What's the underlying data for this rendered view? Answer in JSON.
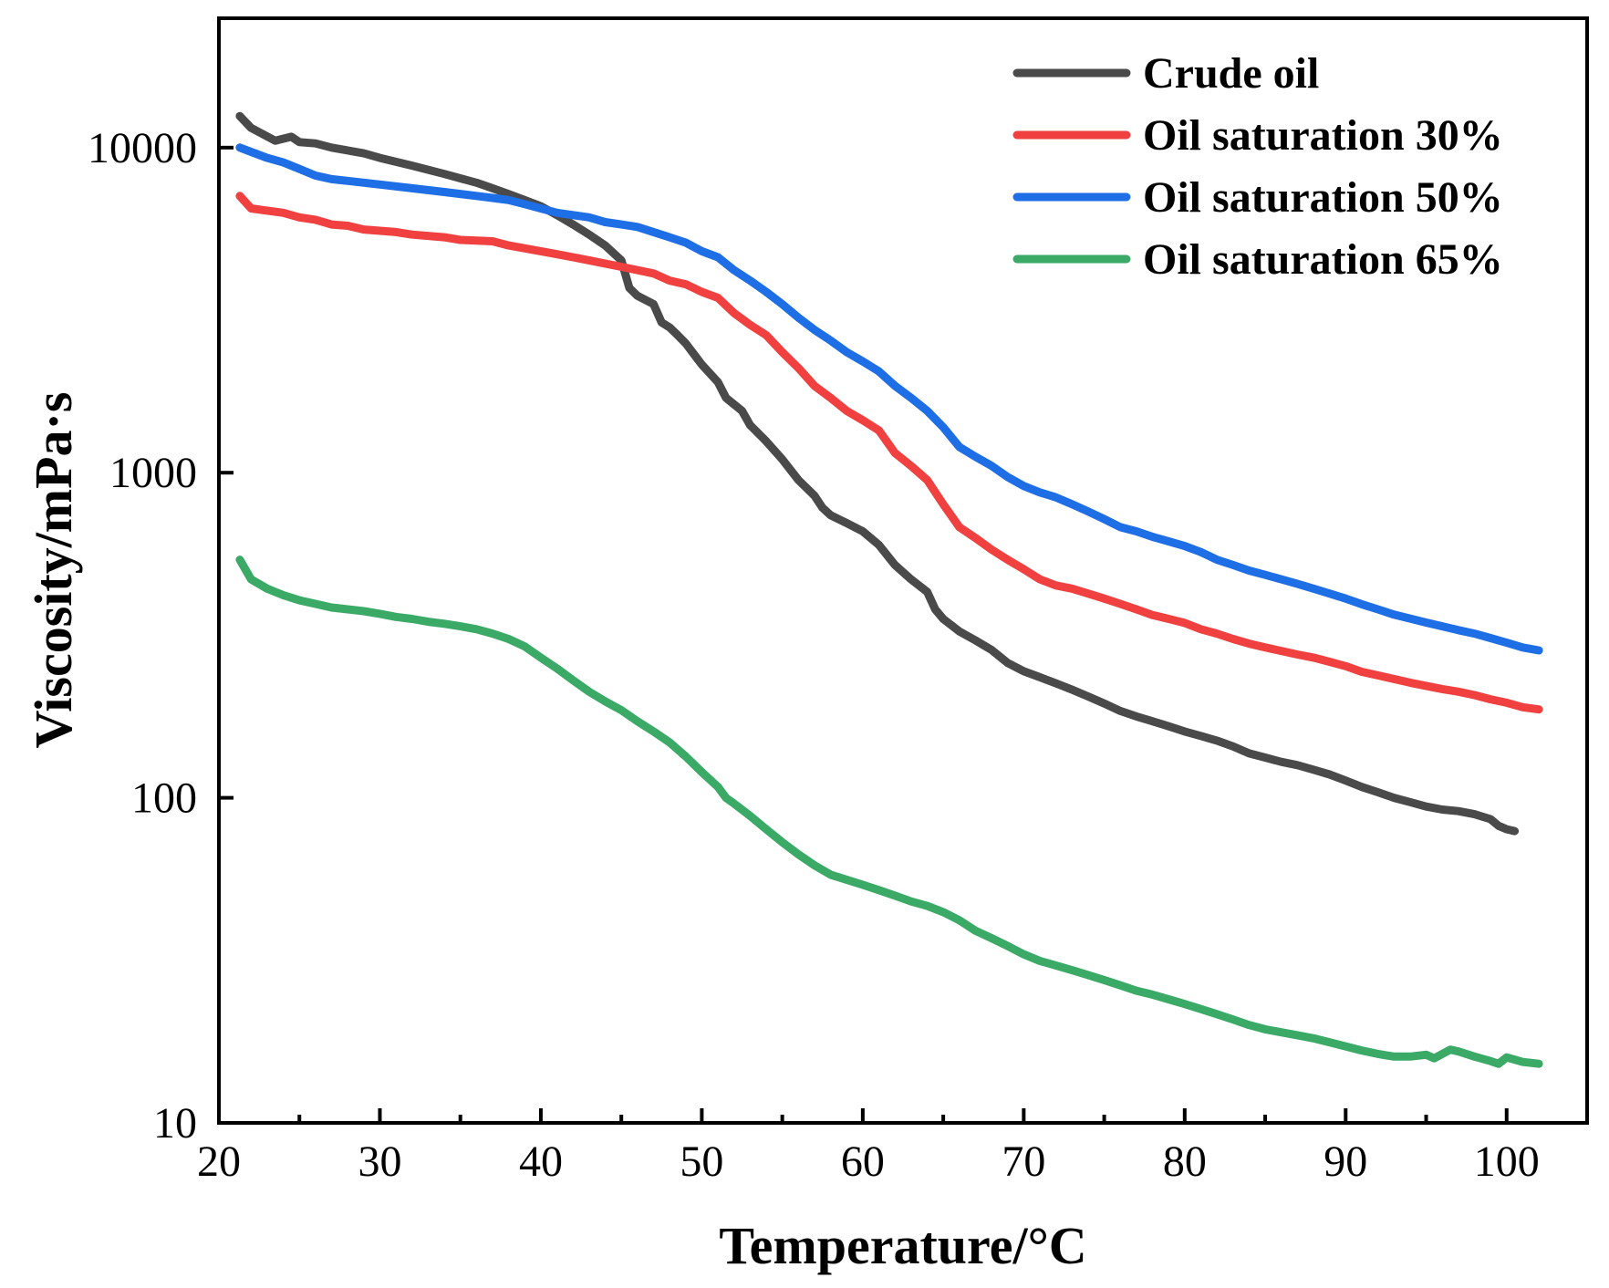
{
  "chart_data": {
    "type": "line",
    "xlabel": "Temperature/°C",
    "ylabel": "Viscosity/mPa·s",
    "xlim": [
      20,
      105
    ],
    "ylim": [
      10,
      25000
    ],
    "y_scale": "log",
    "x_ticks": [
      20,
      30,
      40,
      50,
      60,
      70,
      80,
      90,
      100
    ],
    "y_ticks": [
      10,
      100,
      1000,
      10000
    ],
    "x_tick_labels": [
      "20",
      "30",
      "40",
      "50",
      "60",
      "70",
      "80",
      "90",
      "100"
    ],
    "y_tick_labels": [
      "10",
      "100",
      "1000",
      "10000"
    ],
    "legend_position": "top-right",
    "grid": false,
    "series": [
      {
        "name": "Crude oil",
        "color": "#4a4a4a",
        "points": [
          [
            21.3,
            12500
          ],
          [
            22,
            11500
          ],
          [
            23.5,
            10500
          ],
          [
            24.5,
            10800
          ],
          [
            25,
            10400
          ],
          [
            26,
            10300
          ],
          [
            27,
            10000
          ],
          [
            29,
            9600
          ],
          [
            30,
            9300
          ],
          [
            32,
            8800
          ],
          [
            34,
            8300
          ],
          [
            36,
            7800
          ],
          [
            37,
            7500
          ],
          [
            38,
            7200
          ],
          [
            39,
            6900
          ],
          [
            40,
            6600
          ],
          [
            41,
            6200
          ],
          [
            42,
            5800
          ],
          [
            43,
            5400
          ],
          [
            44,
            5000
          ],
          [
            45,
            4500
          ],
          [
            45.5,
            3700
          ],
          [
            46,
            3500
          ],
          [
            47,
            3300
          ],
          [
            47.5,
            2900
          ],
          [
            48,
            2800
          ],
          [
            48.5,
            2650
          ],
          [
            49,
            2500
          ],
          [
            50,
            2150
          ],
          [
            51,
            1900
          ],
          [
            51.5,
            1700
          ],
          [
            52.5,
            1550
          ],
          [
            53,
            1400
          ],
          [
            54,
            1250
          ],
          [
            55,
            1100
          ],
          [
            56,
            950
          ],
          [
            57,
            850
          ],
          [
            57.5,
            780
          ],
          [
            58,
            740
          ],
          [
            59,
            700
          ],
          [
            60,
            660
          ],
          [
            61,
            600
          ],
          [
            62,
            520
          ],
          [
            63,
            470
          ],
          [
            64,
            430
          ],
          [
            64.5,
            380
          ],
          [
            65,
            355
          ],
          [
            66,
            325
          ],
          [
            67,
            305
          ],
          [
            68,
            285
          ],
          [
            69,
            260
          ],
          [
            70,
            245
          ],
          [
            71,
            235
          ],
          [
            72,
            225
          ],
          [
            73,
            215
          ],
          [
            74,
            205
          ],
          [
            75,
            195
          ],
          [
            76,
            185
          ],
          [
            77,
            178
          ],
          [
            78,
            172
          ],
          [
            79,
            166
          ],
          [
            80,
            160
          ],
          [
            81,
            155
          ],
          [
            82,
            150
          ],
          [
            83,
            144
          ],
          [
            84,
            137
          ],
          [
            85,
            133
          ],
          [
            86,
            129
          ],
          [
            87,
            126
          ],
          [
            88,
            122
          ],
          [
            89,
            118
          ],
          [
            90,
            113
          ],
          [
            91,
            108
          ],
          [
            92,
            104
          ],
          [
            93,
            100
          ],
          [
            94,
            97
          ],
          [
            95,
            94
          ],
          [
            96,
            92
          ],
          [
            97,
            91
          ],
          [
            98,
            89
          ],
          [
            99,
            86
          ],
          [
            99.5,
            82
          ],
          [
            100,
            80
          ],
          [
            100.5,
            79
          ]
        ]
      },
      {
        "name": "Oil saturation 30%",
        "color": "#f04040",
        "points": [
          [
            21.3,
            7100
          ],
          [
            22,
            6500
          ],
          [
            23,
            6400
          ],
          [
            24,
            6300
          ],
          [
            25,
            6100
          ],
          [
            26,
            6000
          ],
          [
            27,
            5800
          ],
          [
            28,
            5750
          ],
          [
            29,
            5600
          ],
          [
            31,
            5500
          ],
          [
            32,
            5400
          ],
          [
            34,
            5300
          ],
          [
            35,
            5200
          ],
          [
            37,
            5150
          ],
          [
            38,
            5000
          ],
          [
            40,
            4800
          ],
          [
            41,
            4700
          ],
          [
            42,
            4600
          ],
          [
            43,
            4500
          ],
          [
            45,
            4300
          ],
          [
            46,
            4200
          ],
          [
            47,
            4100
          ],
          [
            48,
            3900
          ],
          [
            49,
            3800
          ],
          [
            50,
            3600
          ],
          [
            51,
            3450
          ],
          [
            52,
            3100
          ],
          [
            53,
            2850
          ],
          [
            54,
            2650
          ],
          [
            55,
            2350
          ],
          [
            56,
            2100
          ],
          [
            57,
            1850
          ],
          [
            58,
            1700
          ],
          [
            59,
            1550
          ],
          [
            60,
            1450
          ],
          [
            61,
            1350
          ],
          [
            62,
            1150
          ],
          [
            63,
            1050
          ],
          [
            64,
            950
          ],
          [
            65,
            800
          ],
          [
            66,
            680
          ],
          [
            67,
            630
          ],
          [
            68,
            580
          ],
          [
            69,
            540
          ],
          [
            70,
            505
          ],
          [
            71,
            470
          ],
          [
            72,
            450
          ],
          [
            73,
            440
          ],
          [
            74,
            425
          ],
          [
            75,
            410
          ],
          [
            76,
            395
          ],
          [
            77,
            380
          ],
          [
            78,
            365
          ],
          [
            79,
            355
          ],
          [
            80,
            345
          ],
          [
            81,
            330
          ],
          [
            82,
            320
          ],
          [
            83,
            308
          ],
          [
            84,
            298
          ],
          [
            85,
            290
          ],
          [
            86,
            283
          ],
          [
            87,
            276
          ],
          [
            88,
            270
          ],
          [
            89,
            262
          ],
          [
            90,
            254
          ],
          [
            91,
            244
          ],
          [
            92,
            238
          ],
          [
            93,
            232
          ],
          [
            94,
            226
          ],
          [
            95,
            221
          ],
          [
            96,
            216
          ],
          [
            97,
            212
          ],
          [
            98,
            207
          ],
          [
            99,
            201
          ],
          [
            100,
            196
          ],
          [
            101,
            190
          ],
          [
            102,
            187
          ]
        ]
      },
      {
        "name": "Oil saturation 50%",
        "color": "#1e6ee6",
        "points": [
          [
            21.3,
            10000
          ],
          [
            22,
            9700
          ],
          [
            23,
            9300
          ],
          [
            24,
            9000
          ],
          [
            25,
            8600
          ],
          [
            26,
            8200
          ],
          [
            27,
            8000
          ],
          [
            28,
            7900
          ],
          [
            29,
            7800
          ],
          [
            30,
            7700
          ],
          [
            32,
            7500
          ],
          [
            34,
            7300
          ],
          [
            36,
            7100
          ],
          [
            37,
            7000
          ],
          [
            38,
            6900
          ],
          [
            39,
            6700
          ],
          [
            40,
            6500
          ],
          [
            41,
            6300
          ],
          [
            42,
            6200
          ],
          [
            43,
            6100
          ],
          [
            44,
            5900
          ],
          [
            45,
            5800
          ],
          [
            46,
            5700
          ],
          [
            47,
            5500
          ],
          [
            48,
            5300
          ],
          [
            49,
            5100
          ],
          [
            50,
            4800
          ],
          [
            51,
            4600
          ],
          [
            52,
            4200
          ],
          [
            53,
            3900
          ],
          [
            54,
            3600
          ],
          [
            55,
            3300
          ],
          [
            56,
            3000
          ],
          [
            57,
            2750
          ],
          [
            58,
            2550
          ],
          [
            59,
            2350
          ],
          [
            60,
            2200
          ],
          [
            61,
            2050
          ],
          [
            62,
            1850
          ],
          [
            63,
            1700
          ],
          [
            64,
            1550
          ],
          [
            65,
            1380
          ],
          [
            66,
            1200
          ],
          [
            67,
            1120
          ],
          [
            68,
            1050
          ],
          [
            69,
            970
          ],
          [
            70,
            910
          ],
          [
            71,
            870
          ],
          [
            72,
            840
          ],
          [
            73,
            800
          ],
          [
            74,
            760
          ],
          [
            75,
            720
          ],
          [
            76,
            680
          ],
          [
            77,
            660
          ],
          [
            78,
            635
          ],
          [
            79,
            615
          ],
          [
            80,
            595
          ],
          [
            81,
            570
          ],
          [
            82,
            540
          ],
          [
            83,
            520
          ],
          [
            84,
            500
          ],
          [
            85,
            485
          ],
          [
            86,
            470
          ],
          [
            87,
            455
          ],
          [
            88,
            440
          ],
          [
            89,
            425
          ],
          [
            90,
            410
          ],
          [
            91,
            394
          ],
          [
            92,
            380
          ],
          [
            93,
            366
          ],
          [
            94,
            356
          ],
          [
            95,
            346
          ],
          [
            96,
            337
          ],
          [
            97,
            328
          ],
          [
            98,
            320
          ],
          [
            99,
            310
          ],
          [
            100,
            300
          ],
          [
            101,
            290
          ],
          [
            102,
            284
          ]
        ]
      },
      {
        "name": "Oil saturation 65%",
        "color": "#3aaa66",
        "points": [
          [
            21.3,
            540
          ],
          [
            22,
            470
          ],
          [
            23,
            440
          ],
          [
            24,
            420
          ],
          [
            25,
            405
          ],
          [
            26,
            395
          ],
          [
            27,
            385
          ],
          [
            28,
            380
          ],
          [
            29,
            375
          ],
          [
            30,
            368
          ],
          [
            31,
            360
          ],
          [
            32,
            355
          ],
          [
            33,
            348
          ],
          [
            34,
            343
          ],
          [
            35,
            337
          ],
          [
            36,
            330
          ],
          [
            37,
            320
          ],
          [
            38,
            308
          ],
          [
            39,
            292
          ],
          [
            40,
            270
          ],
          [
            41,
            250
          ],
          [
            42,
            230
          ],
          [
            43,
            212
          ],
          [
            44,
            198
          ],
          [
            45,
            186
          ],
          [
            46,
            172
          ],
          [
            47,
            160
          ],
          [
            48,
            148
          ],
          [
            49,
            134
          ],
          [
            50,
            120
          ],
          [
            51,
            108
          ],
          [
            51.5,
            100
          ],
          [
            52,
            96
          ],
          [
            53,
            88
          ],
          [
            54,
            80
          ],
          [
            55,
            73
          ],
          [
            56,
            67
          ],
          [
            57,
            62
          ],
          [
            58,
            58
          ],
          [
            59,
            56
          ],
          [
            60,
            54
          ],
          [
            61,
            52
          ],
          [
            62,
            50
          ],
          [
            63,
            48
          ],
          [
            64,
            46.5
          ],
          [
            65,
            44.5
          ],
          [
            66,
            42
          ],
          [
            67,
            39
          ],
          [
            68,
            37
          ],
          [
            69,
            35
          ],
          [
            70,
            33
          ],
          [
            71,
            31.5
          ],
          [
            72,
            30.5
          ],
          [
            73,
            29.5
          ],
          [
            74,
            28.5
          ],
          [
            75,
            27.5
          ],
          [
            76,
            26.5
          ],
          [
            77,
            25.5
          ],
          [
            78,
            24.8
          ],
          [
            79,
            24
          ],
          [
            80,
            23.2
          ],
          [
            81,
            22.4
          ],
          [
            82,
            21.6
          ],
          [
            83,
            20.8
          ],
          [
            84,
            20
          ],
          [
            85,
            19.4
          ],
          [
            86,
            19
          ],
          [
            87,
            18.6
          ],
          [
            88,
            18.2
          ],
          [
            89,
            17.7
          ],
          [
            90,
            17.2
          ],
          [
            91,
            16.7
          ],
          [
            92,
            16.3
          ],
          [
            93,
            16.0
          ],
          [
            94,
            16.0
          ],
          [
            95,
            16.2
          ],
          [
            95.5,
            15.8
          ],
          [
            96.5,
            16.8
          ],
          [
            97,
            16.6
          ],
          [
            98,
            16.0
          ],
          [
            99,
            15.5
          ],
          [
            99.5,
            15.2
          ],
          [
            100,
            15.9
          ],
          [
            101,
            15.4
          ],
          [
            102,
            15.2
          ]
        ]
      }
    ]
  }
}
